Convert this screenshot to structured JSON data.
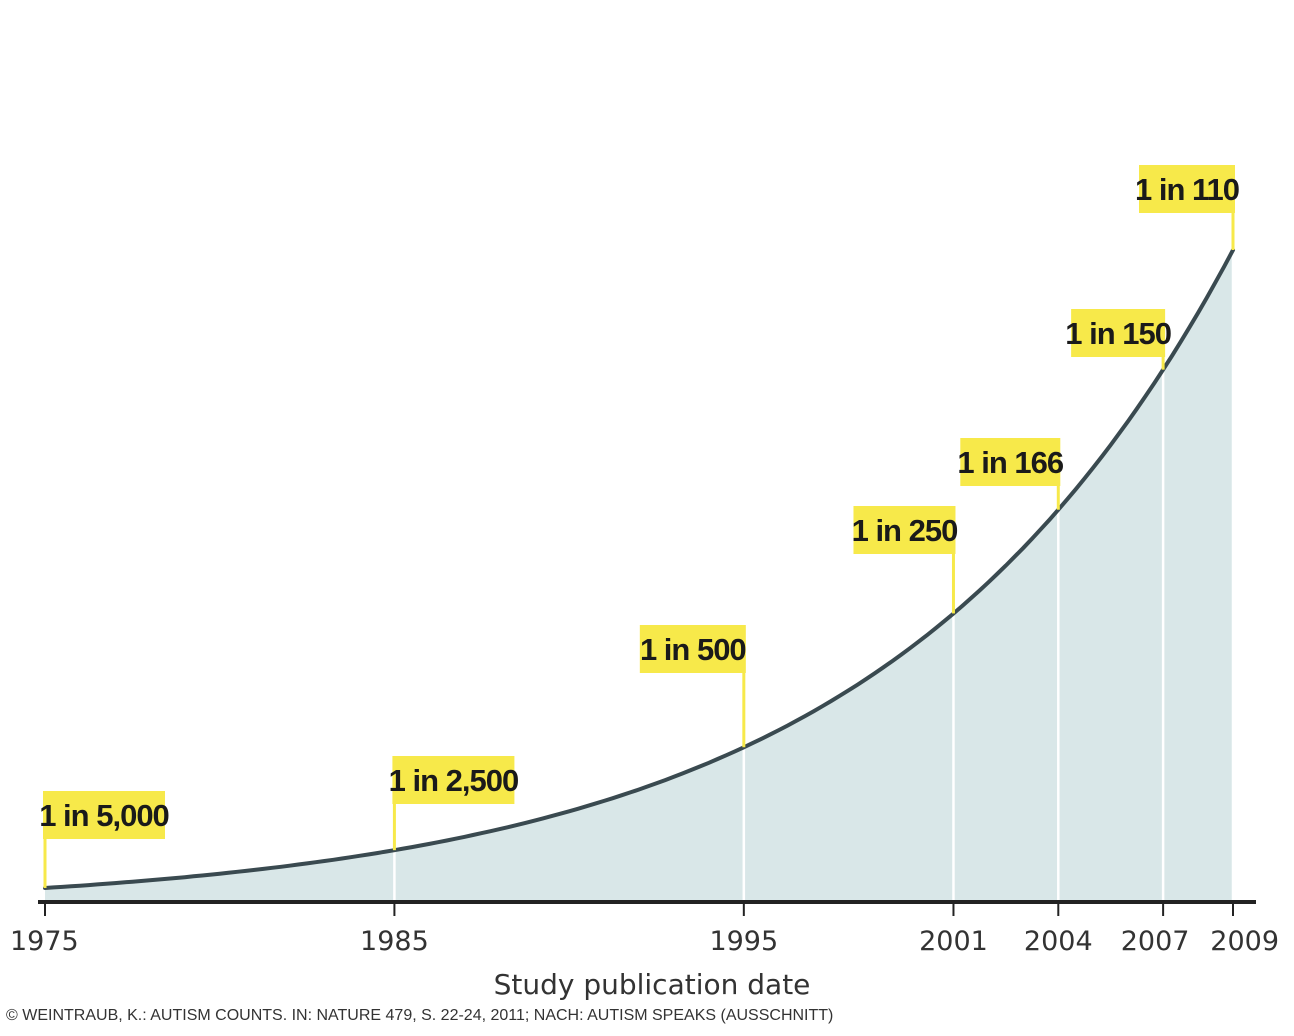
{
  "chart_data": {
    "type": "area",
    "title": "",
    "xlabel": "Study publication date",
    "ylabel": "",
    "x": [
      1975,
      1985,
      1995,
      2001,
      2004,
      2007,
      2009
    ],
    "tick_labels": [
      "1975",
      "1985",
      "1995",
      "2001",
      "2004",
      "2007",
      "2009"
    ],
    "series": [
      {
        "values": [
          0.0002,
          0.0004,
          0.002,
          0.004,
          0.006024,
          0.006667,
          0.009091
        ],
        "labels": [
          "1 in 5,000",
          "1 in 2,500",
          "1 in 500",
          "1 in 250",
          "1 in 166",
          "1 in 150",
          "1 in 110"
        ]
      }
    ],
    "credit": "© WEINTRAUB, K.: AUTISM COUNTS. IN: NATURE 479, S. 22-24, 2011; NACH: AUTISM SPEAKS (AUSSCHNITT)",
    "colors": {
      "curve": "#3a4a50",
      "area": "#d9e7e8",
      "tag": "#f7e94a",
      "axis": "#222222"
    },
    "grid": false,
    "legend": "none"
  }
}
